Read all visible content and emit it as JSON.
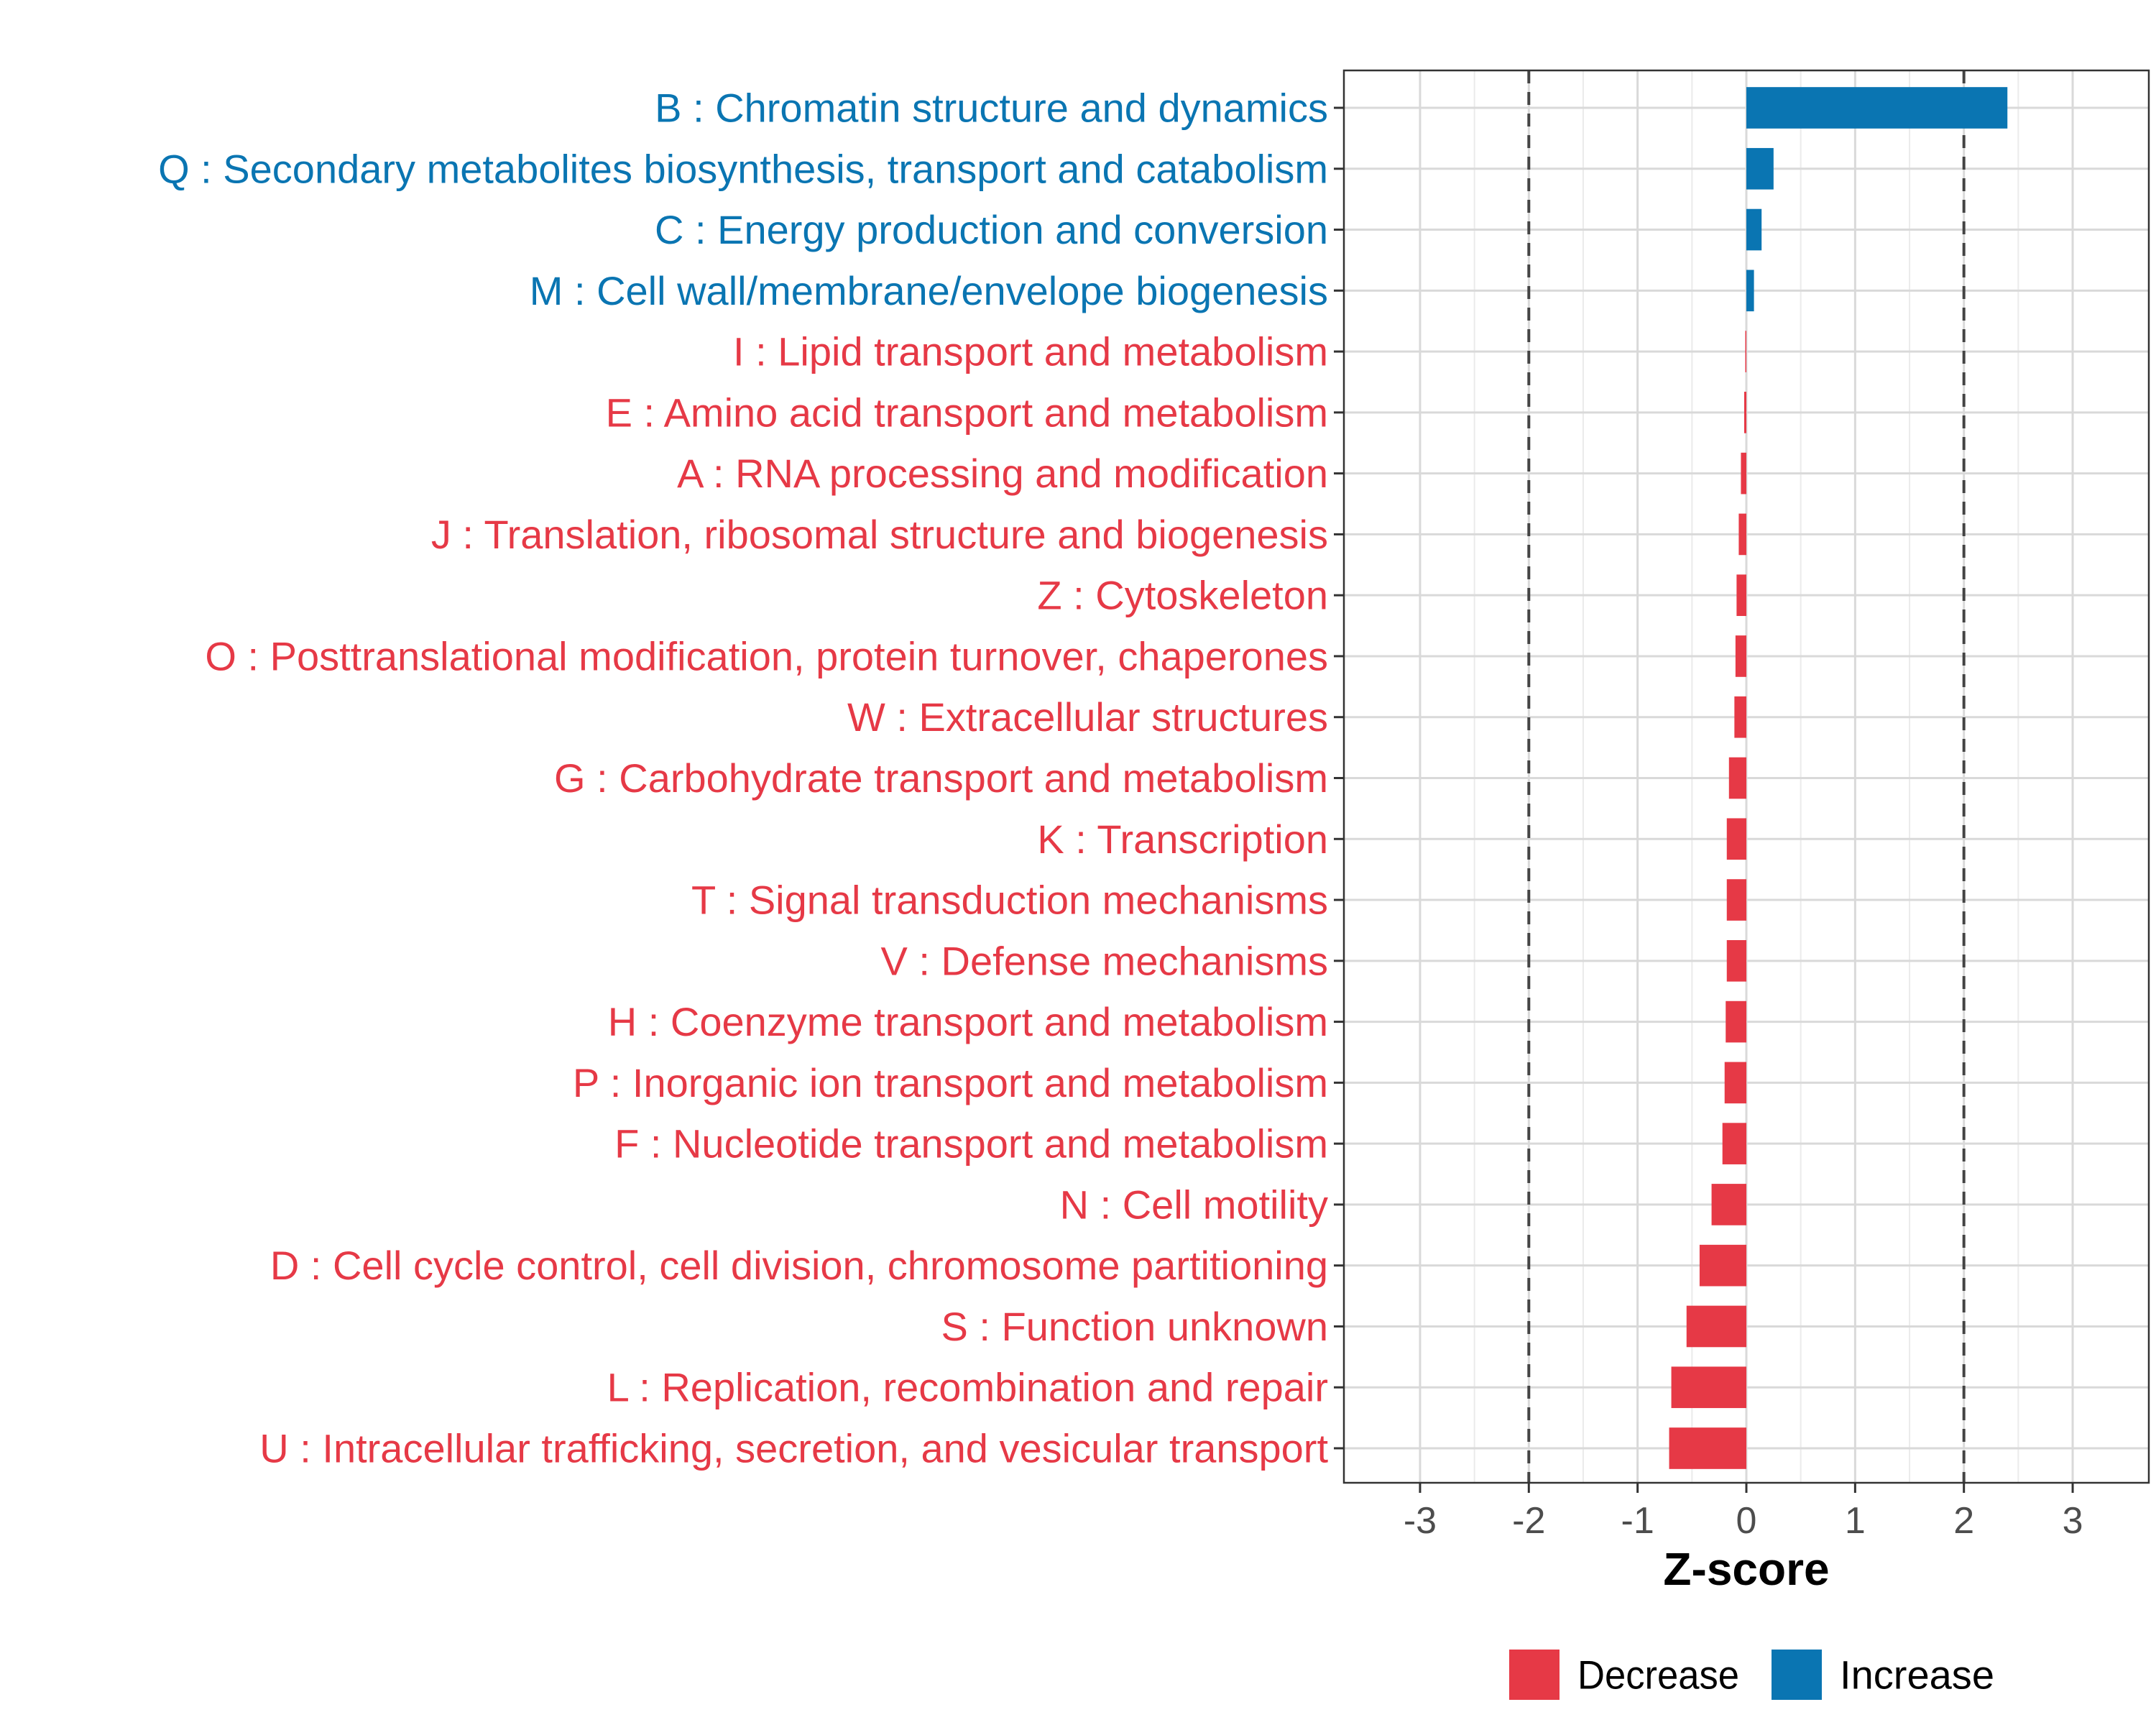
{
  "chart_data": {
    "type": "bar",
    "orientation": "horizontal",
    "xlabel": "Z-score",
    "xlim": [
      -3.7,
      3.7
    ],
    "xticks": [
      -3,
      -2,
      -1,
      0,
      1,
      2,
      3
    ],
    "xtick_labels": [
      "-3",
      "-2",
      "-1",
      "0",
      "1",
      "2",
      "3"
    ],
    "reference_lines": [
      -2,
      2
    ],
    "grid": true,
    "colors": {
      "Decrease": "#E63946",
      "Increase": "#0A75B2"
    },
    "categories": [
      "B : Chromatin structure and dynamics",
      "Q : Secondary metabolites biosynthesis, transport and catabolism",
      "C : Energy production and conversion",
      "M : Cell wall/membrane/envelope biogenesis",
      "I : Lipid transport and metabolism",
      "E : Amino acid transport and metabolism",
      "A : RNA processing and modification",
      "J : Translation, ribosomal structure and biogenesis",
      "Z : Cytoskeleton",
      "O : Posttranslational modification, protein turnover, chaperones",
      "W : Extracellular structures",
      "G : Carbohydrate transport and metabolism",
      "K : Transcription",
      "T : Signal transduction mechanisms",
      "V : Defense mechanisms",
      "H : Coenzyme transport and metabolism",
      "P : Inorganic ion transport and metabolism",
      "F : Nucleotide transport and metabolism",
      "N : Cell motility",
      "D : Cell cycle control, cell division, chromosome partitioning",
      "S : Function unknown",
      "L : Replication, recombination and repair",
      "U : Intracellular trafficking, secretion, and vesicular transport"
    ],
    "values": [
      2.4,
      0.25,
      0.14,
      0.07,
      -0.01,
      -0.02,
      -0.05,
      -0.07,
      -0.09,
      -0.1,
      -0.11,
      -0.16,
      -0.18,
      -0.18,
      -0.18,
      -0.19,
      -0.2,
      -0.22,
      -0.32,
      -0.43,
      -0.55,
      -0.69,
      -0.71
    ],
    "groups": [
      "Increase",
      "Increase",
      "Increase",
      "Increase",
      "Decrease",
      "Decrease",
      "Decrease",
      "Decrease",
      "Decrease",
      "Decrease",
      "Decrease",
      "Decrease",
      "Decrease",
      "Decrease",
      "Decrease",
      "Decrease",
      "Decrease",
      "Decrease",
      "Decrease",
      "Decrease",
      "Decrease",
      "Decrease",
      "Decrease"
    ],
    "legend": {
      "placement": "bottom",
      "entries": [
        {
          "label": "Decrease",
          "color": "#E63946"
        },
        {
          "label": "Increase",
          "color": "#0A75B2"
        }
      ]
    }
  }
}
